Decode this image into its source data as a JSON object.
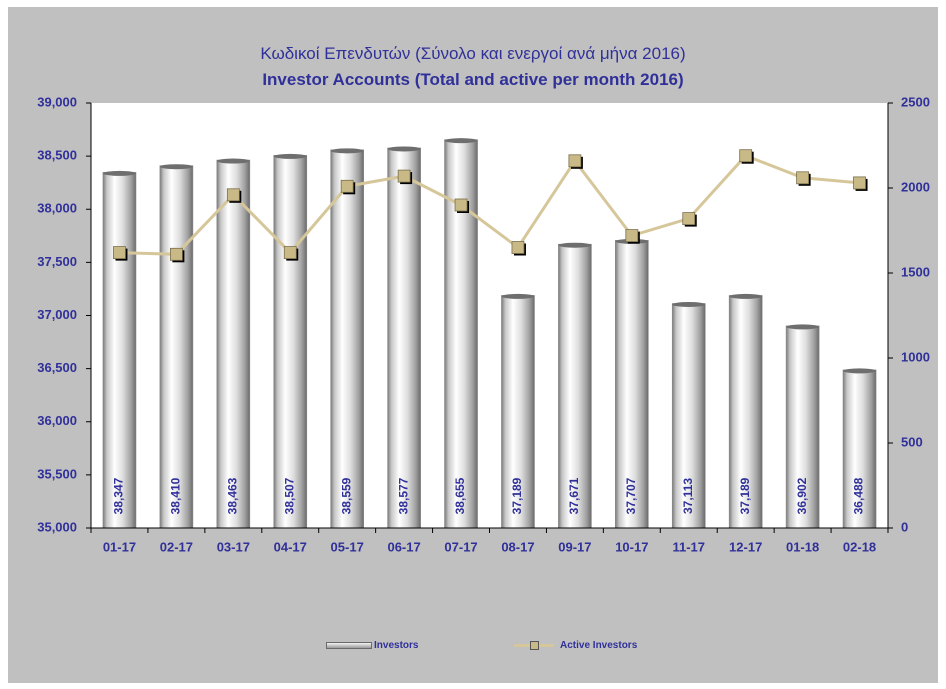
{
  "chart_data": {
    "type": "bar",
    "title": "Κωδικοί Επενδυτών (Σύνολο και ενεργοί ανά μήνα 2016)",
    "subtitle": "Investor Accounts (Total and active per month 2016)",
    "categories": [
      "01-17",
      "02-17",
      "03-17",
      "04-17",
      "05-17",
      "06-17",
      "07-17",
      "08-17",
      "09-17",
      "10-17",
      "11-17",
      "12-17",
      "01-18",
      "02-18"
    ],
    "series": [
      {
        "name": "Investors",
        "type": "bar",
        "axis": "left",
        "values": [
          38347,
          38410,
          38463,
          38507,
          38559,
          38577,
          38655,
          37189,
          37671,
          37707,
          37113,
          37189,
          36902,
          36488
        ],
        "labels": [
          "38,347",
          "38,410",
          "38,463",
          "38,507",
          "38,559",
          "38,577",
          "38,655",
          "37,189",
          "37,671",
          "37,707",
          "37,113",
          "37,189",
          "36,902",
          "36,488"
        ]
      },
      {
        "name": "Active Investors",
        "type": "line",
        "axis": "right",
        "values": [
          1620,
          1610,
          1960,
          1620,
          2010,
          2070,
          1900,
          1650,
          2160,
          1720,
          1820,
          2190,
          2060,
          2030
        ]
      }
    ],
    "ylim": [
      35000,
      39000
    ],
    "y2lim": [
      0,
      2500
    ],
    "yticks": [
      "35,000",
      "35,500",
      "36,000",
      "36,500",
      "37,000",
      "37,500",
      "38,000",
      "38,500",
      "39,000"
    ],
    "y2ticks": [
      "0",
      "500",
      "1000",
      "1500",
      "2000",
      "2500"
    ],
    "grid": false,
    "legend": "bottom"
  },
  "colors": {
    "title": "#30309a",
    "axis_text": "#30309a",
    "plot_bg": "#ffffff",
    "outer_bg": "#c0c0c0",
    "line": "#d6c79b",
    "marker": "#c8b986"
  }
}
